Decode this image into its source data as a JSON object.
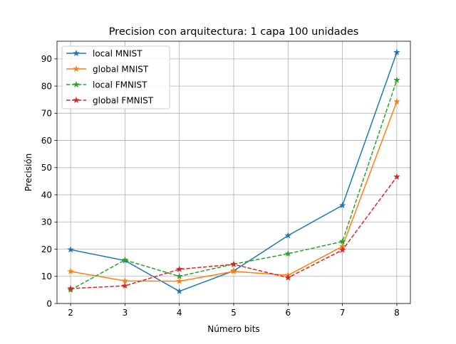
{
  "chart_data": {
    "type": "line",
    "title": "Precision con arquitectura: 1 capa 100 unidades",
    "xlabel": "Número bits",
    "ylabel": "Precisión",
    "x": [
      2,
      3,
      4,
      5,
      6,
      7,
      8
    ],
    "xlim": [
      1.75,
      8.25
    ],
    "ylim": [
      0,
      96.5
    ],
    "xticks": [
      2,
      3,
      4,
      5,
      6,
      7,
      8
    ],
    "yticks": [
      0,
      10,
      20,
      30,
      40,
      50,
      60,
      70,
      80,
      90
    ],
    "grid": true,
    "legend_position": "top-left",
    "series": [
      {
        "name": "local MNIST",
        "color": "#1f77b4",
        "dashed": false,
        "marker": "star",
        "values": [
          19.8,
          15.8,
          4.5,
          12.0,
          25.0,
          36.1,
          92.4
        ]
      },
      {
        "name": "global MNIST",
        "color": "#ff7f0e",
        "dashed": false,
        "marker": "star",
        "values": [
          11.8,
          8.3,
          8.2,
          11.8,
          10.4,
          21.0,
          74.3
        ]
      },
      {
        "name": "local FMNIST",
        "color": "#2ca02c",
        "dashed": true,
        "marker": "star",
        "values": [
          5.0,
          16.0,
          10.0,
          14.5,
          18.3,
          22.8,
          82.2
        ]
      },
      {
        "name": "global FMNIST",
        "color": "#d62728",
        "dashed": true,
        "marker": "star",
        "values": [
          5.5,
          6.5,
          12.6,
          14.4,
          9.5,
          19.7,
          46.6
        ]
      }
    ]
  }
}
